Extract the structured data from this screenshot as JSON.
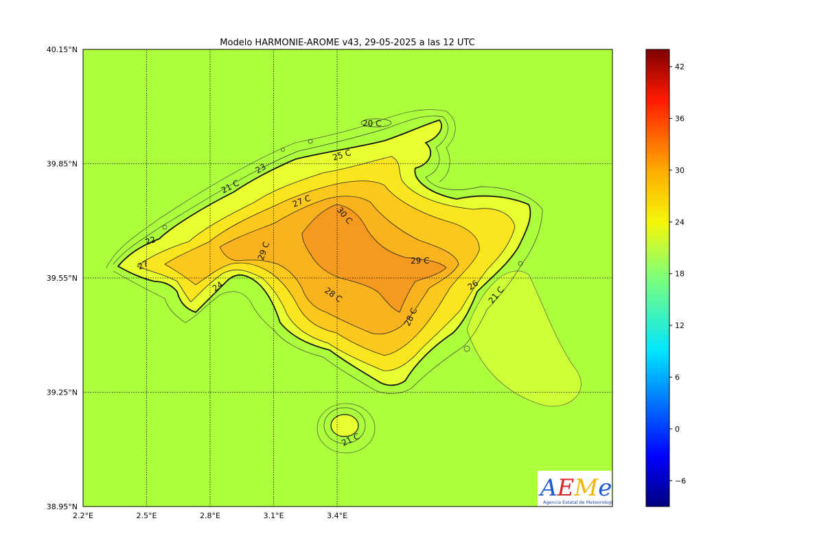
{
  "title": "Modelo HARMONIE-AROME v43, 29-05-2025 a las 12 UTC",
  "lat_ticks": [
    "40.15°N",
    "39.85°N",
    "39.55°N",
    "39.25°N",
    "38.95°N"
  ],
  "lon_ticks": [
    "2.2°E",
    "2.5°E",
    "2.8°E",
    "3.1°E",
    "3.4°E"
  ],
  "lat_values": [
    40.15,
    39.85,
    39.55,
    39.25,
    38.95
  ],
  "lon_values": [
    2.2,
    2.5,
    2.8,
    3.1,
    3.4
  ],
  "colorbar": {
    "ticks": [
      "42",
      "36",
      "30",
      "24",
      "18",
      "12",
      "6",
      "0",
      "−6"
    ],
    "values": [
      42,
      36,
      30,
      24,
      18,
      12,
      6,
      0,
      -6
    ],
    "vmin": -9,
    "vmax": 44
  },
  "contour_labels": [
    "20 C",
    "25 C",
    "21 C",
    "23",
    "27 C",
    "30 C",
    "22",
    "29 C",
    "27",
    "29 C",
    "24",
    "28 C",
    "28 C",
    "26",
    "21 C",
    "21 C"
  ],
  "logo": {
    "name": "AEMet",
    "subtitle": "Agencia Estatal de Meteorología"
  },
  "colors": {
    "sea": "#adff3d",
    "land_outer": "#f2ff2a",
    "land_mid": "#fed11c",
    "land_warm": "#fbb822",
    "land_hot": "#f69a1d"
  }
}
